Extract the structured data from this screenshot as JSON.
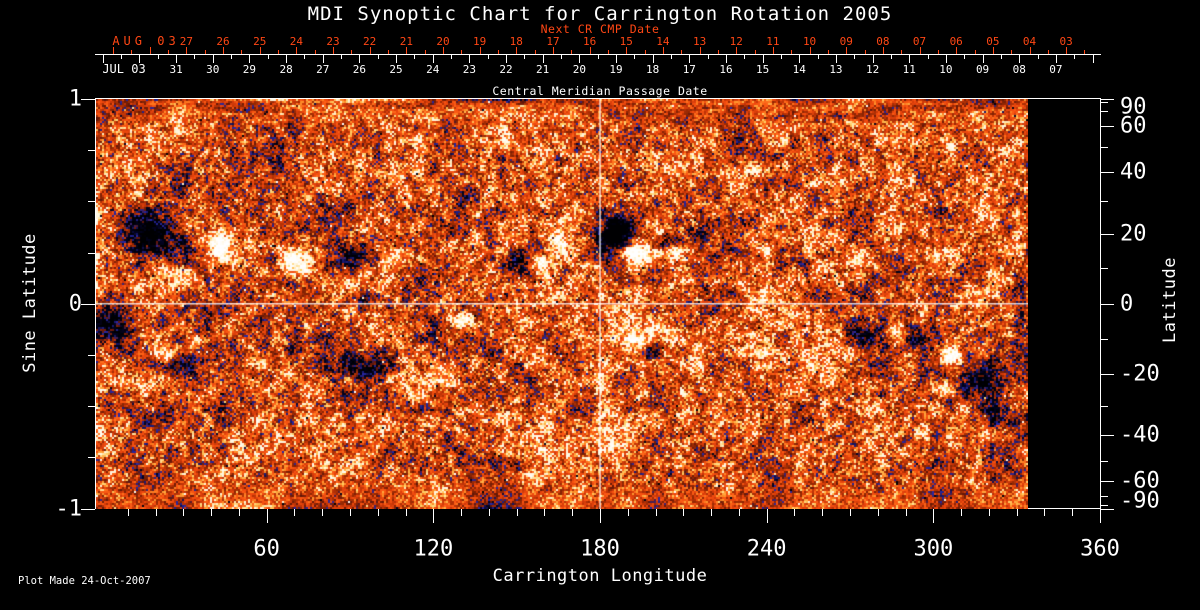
{
  "title": "MDI Synoptic Chart for Carrington Rotation 2005",
  "annotations": {
    "next_cr": "Next CR CMP Date",
    "cmp_caption": "Central Meridian Passage Date",
    "plot_made": "Plot Made 24-Oct-2007"
  },
  "top_axis": {
    "red_month": "AUG 03",
    "red_days": [
      "27",
      "26",
      "25",
      "24",
      "23",
      "22",
      "21",
      "20",
      "19",
      "18",
      "17",
      "16",
      "15",
      "14",
      "13",
      "12",
      "11",
      "10",
      "09",
      "08",
      "07",
      "06",
      "05",
      "04",
      "03"
    ],
    "white_month": "JUL 03",
    "white_days": [
      "31",
      "30",
      "29",
      "28",
      "27",
      "26",
      "25",
      "24",
      "23",
      "22",
      "21",
      "20",
      "19",
      "18",
      "17",
      "16",
      "15",
      "14",
      "13",
      "12",
      "11",
      "10",
      "09",
      "08",
      "07"
    ]
  },
  "bottom_axis": {
    "title": "Carrington Longitude",
    "major_ticks": [
      "60",
      "120",
      "180",
      "240",
      "300",
      "360"
    ]
  },
  "left_axis": {
    "title": "Sine Latitude",
    "major_ticks": [
      "1",
      "0",
      "-1"
    ],
    "major_values": [
      1,
      0,
      -1
    ],
    "minor_values": [
      0.75,
      0.5,
      0.25,
      -0.25,
      -0.5,
      -0.75
    ]
  },
  "right_axis": {
    "title": "Latitude",
    "major_ticks": [
      "90",
      "60",
      "40",
      "20",
      "0",
      "-20",
      "-40",
      "-60",
      "-90"
    ],
    "major_values": [
      90,
      60,
      40,
      20,
      0,
      -20,
      -40,
      -60,
      -90
    ],
    "minor_values": [
      80,
      70,
      50,
      30,
      10,
      -10,
      -30,
      -50,
      -70,
      -80
    ]
  },
  "colors": {
    "background": "#000000",
    "foreground": "#ffffff",
    "accent_red": "#ff4714"
  },
  "chart_data": {
    "type": "heatmap",
    "title": "MDI Synoptic Chart for Carrington Rotation 2005",
    "xlabel": "Carrington Longitude",
    "ylabel_left": "Sine Latitude",
    "ylabel_right": "Latitude",
    "xlim": [
      0,
      360
    ],
    "ylim_sine": [
      -1,
      1
    ],
    "x_major_tick_step": 60,
    "x_minor_tick_step": 10,
    "data_end_longitude": 334,
    "reference_lines": {
      "equator_sine": 0,
      "meridian_longitude": 180
    },
    "cmp_day_spacing_deg": 13.1967,
    "jul31_longitude": 27.4,
    "next_cr_offset_deg": 3.7,
    "palette_stops": [
      [
        -1.0,
        0,
        0,
        2
      ],
      [
        -0.62,
        3,
        3,
        34
      ],
      [
        -0.46,
        40,
        40,
        165
      ],
      [
        -0.38,
        96,
        22,
        8
      ],
      [
        -0.22,
        148,
        40,
        3
      ],
      [
        -0.06,
        200,
        55,
        8
      ],
      [
        0.1,
        238,
        72,
        14
      ],
      [
        0.22,
        252,
        92,
        20
      ],
      [
        0.34,
        255,
        148,
        44
      ],
      [
        0.44,
        255,
        208,
        104
      ],
      [
        0.56,
        255,
        244,
        214
      ],
      [
        1.0,
        255,
        255,
        255
      ]
    ],
    "active_regions": [
      [
        18,
        0.34,
        11,
        0.11,
        -1.0
      ],
      [
        32,
        0.24,
        9,
        0.09,
        -0.9
      ],
      [
        41,
        0.28,
        8,
        0.08,
        0.9
      ],
      [
        30,
        0.14,
        7,
        0.06,
        0.55
      ],
      [
        62,
        0.22,
        4,
        0.04,
        -0.6
      ],
      [
        70,
        0.2,
        5,
        0.05,
        0.75
      ],
      [
        90,
        0.24,
        9,
        0.07,
        -0.85
      ],
      [
        106,
        0.22,
        4,
        0.04,
        0.6
      ],
      [
        97,
        0.02,
        5,
        0.04,
        -0.55
      ],
      [
        128,
        0.36,
        4,
        0.04,
        -0.55
      ],
      [
        151,
        0.2,
        6,
        0.06,
        -1.0
      ],
      [
        158,
        0.2,
        5,
        0.05,
        0.95
      ],
      [
        166,
        0.31,
        4,
        0.04,
        0.5
      ],
      [
        186.5,
        0.34,
        8,
        0.08,
        -1.3
      ],
      [
        194,
        0.25,
        6,
        0.06,
        1.2
      ],
      [
        202,
        0.29,
        4.5,
        0.04,
        -0.8
      ],
      [
        207,
        0.25,
        3.5,
        0.035,
        0.7
      ],
      [
        216,
        0.35,
        4,
        0.04,
        -0.5
      ],
      [
        240,
        0.26,
        3,
        0.03,
        0.6
      ],
      [
        244,
        0.25,
        3,
        0.03,
        -0.55
      ],
      [
        255,
        0.19,
        4.5,
        0.04,
        -0.7
      ],
      [
        259,
        0.18,
        3,
        0.03,
        0.6
      ],
      [
        4,
        -0.1,
        7,
        0.09,
        -0.95
      ],
      [
        24,
        -0.25,
        3.5,
        0.035,
        0.65
      ],
      [
        31,
        -0.31,
        6,
        0.06,
        -0.9
      ],
      [
        94,
        -0.31,
        10,
        0.06,
        -0.75
      ],
      [
        131,
        -0.07,
        5,
        0.045,
        0.85
      ],
      [
        137,
        -0.05,
        2.5,
        0.025,
        -0.5
      ],
      [
        143,
        -0.24,
        3.5,
        0.03,
        -0.5
      ],
      [
        193,
        -0.18,
        6,
        0.055,
        1.1
      ],
      [
        198,
        -0.22,
        4.5,
        0.045,
        -0.9
      ],
      [
        275,
        -0.15,
        7,
        0.065,
        -0.8
      ],
      [
        287,
        -0.15,
        4,
        0.04,
        0.8
      ],
      [
        294,
        -0.17,
        5,
        0.05,
        -0.75
      ],
      [
        280,
        -0.33,
        8,
        0.07,
        -0.6
      ],
      [
        306,
        -0.27,
        5,
        0.055,
        1.0
      ],
      [
        303,
        -0.41,
        5,
        0.04,
        0.8
      ],
      [
        319,
        -0.38,
        9,
        0.1,
        -0.85
      ],
      [
        324,
        -0.55,
        6,
        0.05,
        -0.6
      ],
      [
        72,
        -0.59,
        30,
        0.15,
        0.22
      ],
      [
        176,
        -0.62,
        35,
        0.12,
        0.2
      ],
      [
        248,
        -0.13,
        25,
        0.25,
        0.16
      ],
      [
        40,
        0.25,
        25,
        0.18,
        0.12
      ],
      [
        200,
        0.3,
        30,
        0.15,
        0.1
      ]
    ]
  }
}
